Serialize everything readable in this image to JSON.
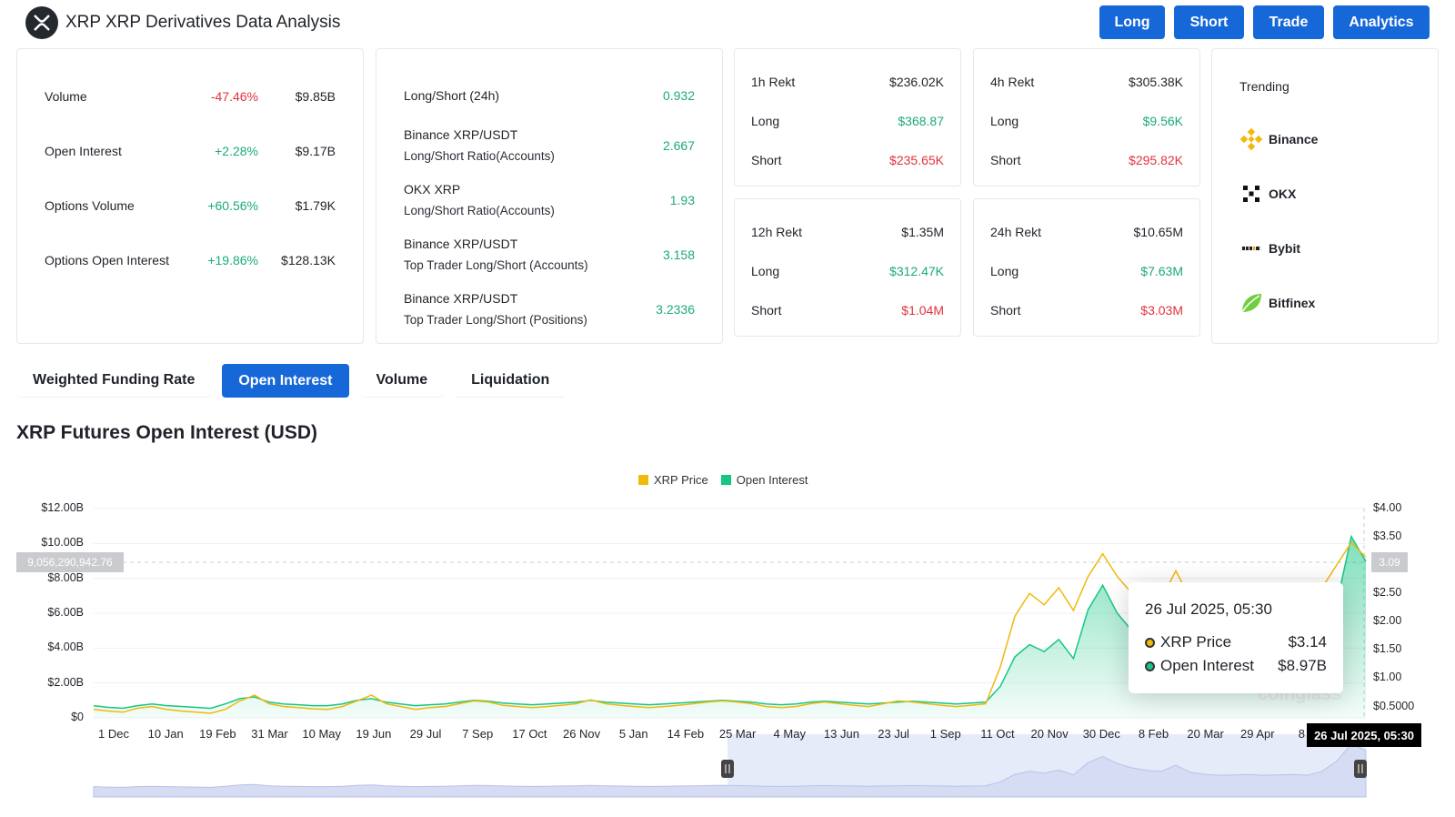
{
  "header": {
    "title": "XRP XRP Derivatives Data Analysis",
    "buttons": [
      "Long",
      "Short",
      "Trade",
      "Analytics"
    ]
  },
  "stats": [
    {
      "label": "Volume",
      "change": "-47.46%",
      "value": "$9.85B",
      "dir": "down"
    },
    {
      "label": "Open Interest",
      "change": "+2.28%",
      "value": "$9.17B",
      "dir": "up"
    },
    {
      "label": "Options Volume",
      "change": "+60.56%",
      "value": "$1.79K",
      "dir": "up"
    },
    {
      "label": "Options Open Interest",
      "change": "+19.86%",
      "value": "$128.13K",
      "dir": "up"
    }
  ],
  "ratios": [
    {
      "label": "Long/Short (24h)",
      "sub": "",
      "value": "0.932"
    },
    {
      "label": "Binance XRP/USDT",
      "sub": "Long/Short Ratio(Accounts)",
      "value": "2.667"
    },
    {
      "label": "OKX XRP",
      "sub": "Long/Short Ratio(Accounts)",
      "value": "1.93"
    },
    {
      "label": "Binance XRP/USDT",
      "sub": "Top Trader Long/Short (Accounts)",
      "value": "3.158"
    },
    {
      "label": "Binance XRP/USDT",
      "sub": "Top Trader Long/Short (Positions)",
      "value": "3.2336"
    }
  ],
  "rekt": [
    {
      "title": "1h Rekt",
      "total": "$236.02K",
      "long_label": "Long",
      "long": "$368.87",
      "short_label": "Short",
      "short": "$235.65K"
    },
    {
      "title": "4h Rekt",
      "total": "$305.38K",
      "long_label": "Long",
      "long": "$9.56K",
      "short_label": "Short",
      "short": "$295.82K"
    },
    {
      "title": "12h Rekt",
      "total": "$1.35M",
      "long_label": "Long",
      "long": "$312.47K",
      "short_label": "Short",
      "short": "$1.04M"
    },
    {
      "title": "24h Rekt",
      "total": "$10.65M",
      "long_label": "Long",
      "long": "$7.63M",
      "short_label": "Short",
      "short": "$3.03M"
    }
  ],
  "trending": {
    "title": "Trending",
    "items": [
      {
        "name": "Binance",
        "icon": "binance-icon"
      },
      {
        "name": "OKX",
        "icon": "okx-icon"
      },
      {
        "name": "Bybit",
        "icon": "bybit-icon"
      },
      {
        "name": "Bitfinex",
        "icon": "bitfinex-icon"
      }
    ]
  },
  "tabs": [
    {
      "label": "Weighted Funding Rate",
      "active": false
    },
    {
      "label": "Open Interest",
      "active": true
    },
    {
      "label": "Volume",
      "active": false
    },
    {
      "label": "Liquidation",
      "active": false
    }
  ],
  "chart_title": "XRP Futures Open Interest (USD)",
  "chart_data": {
    "type": "area",
    "legend": [
      {
        "name": "XRP Price",
        "color": "#f0b90b"
      },
      {
        "name": "Open Interest",
        "color": "#16c784"
      }
    ],
    "legend_position": "top-center",
    "y_left_ticks": [
      "$0",
      "$2.00B",
      "$4.00B",
      "$6.00B",
      "$8.00B",
      "$10.00B",
      "$12.00B"
    ],
    "y_left_range": [
      0,
      12000000000
    ],
    "y_right_ticks": [
      "$0.5000",
      "$1.00",
      "$1.50",
      "$2.00",
      "$2.50",
      "$3.00",
      "$3.50",
      "$4.00"
    ],
    "y_right_range": [
      0.3,
      4.0
    ],
    "x_ticks": [
      "1 Dec",
      "10 Jan",
      "19 Feb",
      "31 Mar",
      "10 May",
      "19 Jun",
      "29 Jul",
      "7 Sep",
      "17 Oct",
      "26 Nov",
      "5 Jan",
      "14 Feb",
      "25 Mar",
      "4 May",
      "13 Jun",
      "23 Jul",
      "1 Sep",
      "11 Oct",
      "20 Nov",
      "30 Dec",
      "8 Feb",
      "20 Mar",
      "29 Apr",
      "8 Ju"
    ],
    "series": [
      {
        "name": "XRP Price",
        "values": [
          0.45,
          0.42,
          0.4,
          0.47,
          0.5,
          0.45,
          0.42,
          0.4,
          0.38,
          0.45,
          0.6,
          0.7,
          0.55,
          0.5,
          0.48,
          0.46,
          0.45,
          0.5,
          0.6,
          0.7,
          0.55,
          0.5,
          0.45,
          0.48,
          0.5,
          0.55,
          0.6,
          0.58,
          0.52,
          0.5,
          0.48,
          0.5,
          0.52,
          0.55,
          0.62,
          0.55,
          0.52,
          0.5,
          0.48,
          0.5,
          0.52,
          0.55,
          0.58,
          0.6,
          0.58,
          0.55,
          0.5,
          0.48,
          0.5,
          0.55,
          0.58,
          0.55,
          0.52,
          0.5,
          0.55,
          0.6,
          0.58,
          0.55,
          0.52,
          0.5,
          0.52,
          0.55,
          1.2,
          2.1,
          2.5,
          2.3,
          2.6,
          2.2,
          2.8,
          3.2,
          2.8,
          2.5,
          2.3,
          2.4,
          2.9,
          2.4,
          2.2,
          2.1,
          2.3,
          2.4,
          2.2,
          2.2,
          2.3,
          2.2,
          2.6,
          3.0,
          3.4,
          3.14
        ]
      },
      {
        "name": "Open Interest",
        "values": [
          0.7,
          0.6,
          0.55,
          0.7,
          0.8,
          0.7,
          0.65,
          0.6,
          0.55,
          0.8,
          1.1,
          1.2,
          0.9,
          0.8,
          0.75,
          0.7,
          0.7,
          0.8,
          1.0,
          1.1,
          0.9,
          0.8,
          0.7,
          0.75,
          0.8,
          0.9,
          1.0,
          0.95,
          0.85,
          0.8,
          0.75,
          0.8,
          0.85,
          0.9,
          1.0,
          0.9,
          0.85,
          0.8,
          0.75,
          0.8,
          0.85,
          0.9,
          0.95,
          1.0,
          0.95,
          0.9,
          0.8,
          0.75,
          0.8,
          0.9,
          0.95,
          0.9,
          0.85,
          0.8,
          0.85,
          0.9,
          0.95,
          0.9,
          0.85,
          0.8,
          0.85,
          0.9,
          1.8,
          3.5,
          4.2,
          3.8,
          4.5,
          3.4,
          6.2,
          7.6,
          6.0,
          5.0,
          4.4,
          4.2,
          5.6,
          4.0,
          3.5,
          3.3,
          3.4,
          3.5,
          3.3,
          3.4,
          3.5,
          3.3,
          4.2,
          6.5,
          10.4,
          8.97
        ]
      }
    ]
  },
  "crosshair": {
    "left_value": "9,056,290,942.76",
    "right_value": "3.09",
    "date": "26 Jul 2025, 05:30"
  },
  "tooltip": {
    "date": "26 Jul 2025, 05:30",
    "rows": [
      {
        "name": "XRP Price",
        "value": "$3.14",
        "color": "#f0b90b"
      },
      {
        "name": "Open Interest",
        "value": "$8.97B",
        "color": "#16c784"
      }
    ]
  },
  "watermark": "coinglass"
}
